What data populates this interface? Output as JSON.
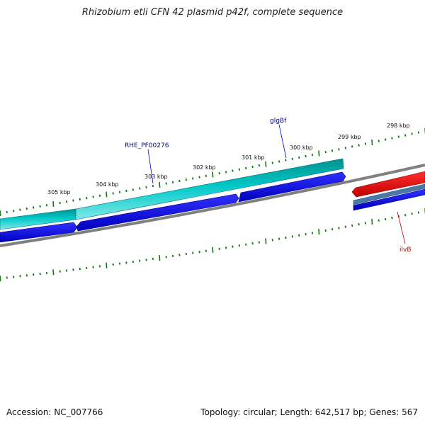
{
  "title": "Rhizobium etli CFN 42 plasmid p42f, complete sequence",
  "footer": {
    "accession": "Accession: NC_007766",
    "summary": "Topology: circular; Length: 642,517 bp; Genes: 567"
  },
  "scale": {
    "labels": [
      "298 kbp",
      "299 kbp",
      "300 kbp",
      "301 kbp",
      "302 kbp",
      "303 kbp",
      "304 kbp",
      "305 kbp"
    ]
  },
  "genes": {
    "glgBf": {
      "label": "glgBf",
      "color": "#000080"
    },
    "rhe": {
      "label": "RHE_PF00276",
      "color": "#000080"
    },
    "ilvB": {
      "label": "ilvB",
      "color": "#cc0000"
    }
  },
  "colors": {
    "tick_marks": "#117711",
    "backbone": "#808080",
    "cds_plus": "#00c0c0",
    "cds_minus": "#0000dd",
    "feature_red": "#ee0000",
    "feature_steel": "#4a78a8"
  }
}
